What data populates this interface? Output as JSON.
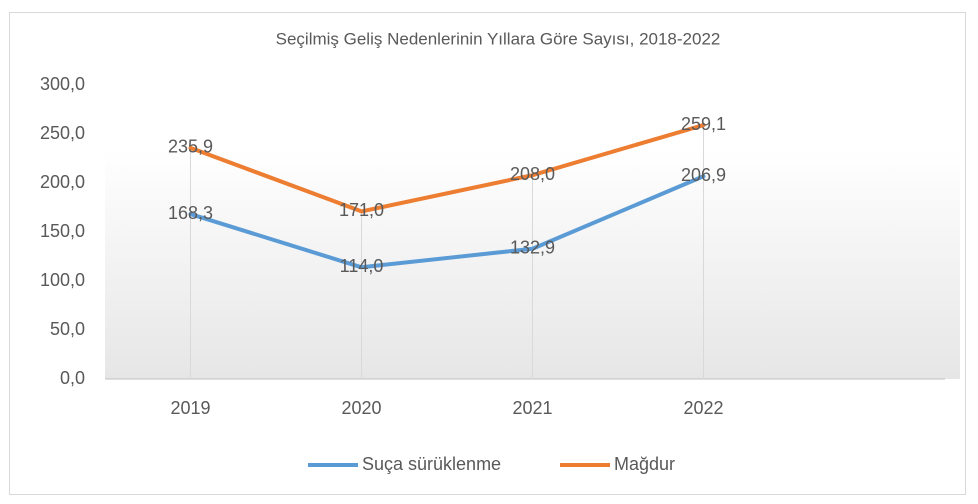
{
  "chart_data": {
    "type": "line",
    "title": "Seçilmiş Geliş Nedenlerinin Yıllara Göre Sayısı, 2018-2022",
    "categories": [
      "2019",
      "2020",
      "2021",
      "2022",
      null
    ],
    "series": [
      {
        "name": "Suça sürüklenme",
        "color": "#5b9bd5",
        "values": [
          168.3,
          114.0,
          132.9,
          206.9,
          null
        ],
        "value_labels": [
          "168,3",
          "114,0",
          "132,9",
          "206,9",
          null
        ]
      },
      {
        "name": "Mağdur",
        "color": "#ed7d31",
        "values": [
          235.9,
          171.0,
          208.0,
          259.1,
          null
        ],
        "value_labels": [
          "235,9",
          "171,0",
          "208,0",
          "259,1",
          null
        ]
      }
    ],
    "ylim": [
      0,
      300
    ],
    "yticks": [
      {
        "value": 0,
        "label": "0,0"
      },
      {
        "value": 50,
        "label": "50,0"
      },
      {
        "value": 100,
        "label": "100,0"
      },
      {
        "value": 150,
        "label": "150,0"
      },
      {
        "value": 200,
        "label": "200,0"
      },
      {
        "value": 250,
        "label": "250,0"
      },
      {
        "value": 300,
        "label": "300,0"
      }
    ],
    "legend": "bottom"
  }
}
